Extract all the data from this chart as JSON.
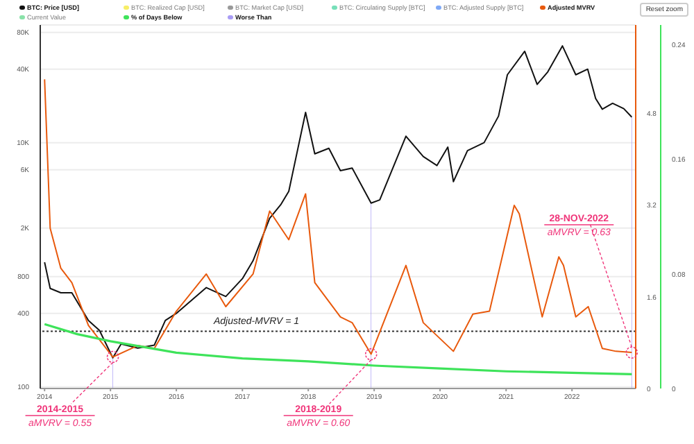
{
  "chart_data": {
    "type": "line",
    "xlim": [
      "2013-12-08",
      "2022-12-20"
    ],
    "xticks": [
      "2014",
      "2015",
      "2016",
      "2017",
      "2018",
      "2019",
      "2020",
      "2021",
      "2022"
    ],
    "log": "y",
    "ylim": [
      97,
      92000
    ],
    "yticks": [
      100,
      400,
      800,
      {
        "value": 2000,
        "label": "2K"
      },
      {
        "value": 6000,
        "label": "6K"
      },
      {
        "value": 10000,
        "label": "10K"
      },
      {
        "value": 40000,
        "label": "40K"
      },
      {
        "value": 80000,
        "label": "80K"
      }
    ],
    "y2lim": [
      0,
      6.35
    ],
    "y2ticks": [
      0,
      1.6,
      3.2,
      4.8
    ],
    "y3lim": [
      0,
      0.254
    ],
    "y3ticks": [
      0,
      0.08,
      0.16,
      0.24
    ],
    "grid": "y",
    "legend": "top",
    "series": [
      {
        "name": "BTC: Price [USD]",
        "color": "#111111",
        "x": [
          "2014-01-01",
          "2014-02-01",
          "2014-04-01",
          "2014-06-01",
          "2014-09-01",
          "2014-11-01",
          "2015-01-14",
          "2015-03-01",
          "2015-06-01",
          "2015-09-01",
          "2015-11-01",
          "2016-01-01",
          "2016-06-15",
          "2016-10-01",
          "2017-01-01",
          "2017-03-01",
          "2017-06-01",
          "2017-08-01",
          "2017-09-15",
          "2017-12-17",
          "2018-02-06",
          "2018-04-25",
          "2018-06-28",
          "2018-09-01",
          "2018-12-15",
          "2019-02-01",
          "2019-06-26",
          "2019-09-30",
          "2019-12-15",
          "2020-02-13",
          "2020-03-15",
          "2020-06-01",
          "2020-09-01",
          "2020-11-20",
          "2021-01-08",
          "2021-04-14",
          "2021-06-22",
          "2021-08-20",
          "2021-11-09",
          "2022-01-22",
          "2022-03-29",
          "2022-05-12",
          "2022-06-18",
          "2022-08-14",
          "2022-10-15",
          "2022-11-28"
        ],
        "values": [
          1050,
          640,
          590,
          590,
          350,
          290,
          173,
          225,
          208,
          220,
          350,
          400,
          650,
          550,
          770,
          1080,
          2400,
          3100,
          4000,
          17700,
          8100,
          9000,
          5900,
          6200,
          3200,
          3400,
          11300,
          7700,
          6500,
          9200,
          4800,
          8600,
          10000,
          16500,
          36000,
          56000,
          30000,
          38000,
          62000,
          36000,
          40000,
          23000,
          18800,
          21000,
          19000,
          16200
        ]
      },
      {
        "name": "BTC: Realized Cap [USD]",
        "color": "#f2e200",
        "type": "line"
      },
      {
        "name": "BTC: Market Cap [USD]",
        "color": "#555555",
        "type": "line"
      },
      {
        "name": "BTC: Circulating Supply [BTC]",
        "color": "#1dc98a",
        "type": "line"
      },
      {
        "name": "BTC: Adjusted Supply [BTC]",
        "color": "#2a6ff0",
        "type": "line"
      },
      {
        "name": "Adjusted MVRV",
        "color": "#e8590c",
        "axis": "y2",
        "x": [
          "2014-01-01",
          "2014-02-01",
          "2014-04-01",
          "2014-06-01",
          "2014-09-01",
          "2015-01-14",
          "2015-06-01",
          "2015-09-01",
          "2016-01-01",
          "2016-06-15",
          "2016-10-01",
          "2017-03-01",
          "2017-06-01",
          "2017-09-15",
          "2017-12-17",
          "2018-02-06",
          "2018-06-28",
          "2018-09-01",
          "2018-12-15",
          "2019-06-26",
          "2019-09-30",
          "2020-03-15",
          "2020-07-01",
          "2020-10-01",
          "2021-02-15",
          "2021-03-15",
          "2021-07-20",
          "2021-10-20",
          "2021-11-15",
          "2022-01-22",
          "2022-04-01",
          "2022-06-18",
          "2022-09-01",
          "2022-11-28"
        ],
        "values": [
          5.4,
          2.8,
          2.1,
          1.85,
          1.1,
          0.55,
          0.75,
          0.7,
          1.35,
          2.0,
          1.43,
          2.0,
          3.1,
          2.6,
          3.4,
          1.85,
          1.25,
          1.15,
          0.6,
          2.15,
          1.15,
          0.65,
          1.3,
          1.35,
          3.2,
          3.05,
          1.25,
          2.3,
          2.15,
          1.25,
          1.43,
          0.7,
          0.65,
          0.63
        ]
      },
      {
        "name": "Current Value",
        "color": "#3ccf70",
        "type": "line"
      },
      {
        "name": "% of Days Below",
        "color": "#3ee35a",
        "axis": "y3",
        "x": [
          "2014-01-01",
          "2014-07-01",
          "2015-01-01",
          "2016-01-01",
          "2017-01-01",
          "2018-01-01",
          "2019-01-01",
          "2020-01-01",
          "2021-01-01",
          "2022-01-01",
          "2022-11-28"
        ],
        "values": [
          0.045,
          0.038,
          0.033,
          0.025,
          0.021,
          0.019,
          0.016,
          0.014,
          0.012,
          0.011,
          0.01
        ]
      },
      {
        "name": "Worse Than",
        "color": "#a99cf5",
        "type": "bar",
        "x": [
          "2015-01-14",
          "2018-12-15",
          "2022-11-28"
        ],
        "values": [
          173,
          3200,
          16200
        ]
      }
    ],
    "ref_lines": [
      {
        "axis": "y2",
        "value": 1,
        "label": "Adjusted-MVRV = 1",
        "color": "#333333",
        "line_style": "dotted"
      }
    ],
    "annotations": [
      "Reset zoom",
      {
        "text": "2014-2015",
        "x": "2015-01-14",
        "y": 176
      },
      "aMVRV = 0.55",
      {
        "text": "2018-2019",
        "x": "2018-12-15",
        "y": 185
      },
      "aMVRV = 0.60",
      {
        "text": "28-NOV-2022",
        "x": "2022-11-28",
        "y": 191
      },
      "aMVRV = 0.63"
    ]
  }
}
